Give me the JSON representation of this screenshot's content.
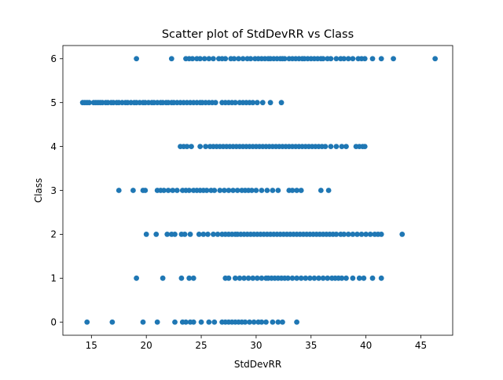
{
  "chart_data": {
    "type": "scatter",
    "title": "Scatter plot of StdDevRR vs Class",
    "xlabel": "StdDevRR",
    "ylabel": "Class",
    "xlim": [
      12.4,
      47.9
    ],
    "ylim": [
      -0.3,
      6.3
    ],
    "xticks": [
      15,
      20,
      25,
      30,
      35,
      40,
      45
    ],
    "yticks": [
      0,
      1,
      2,
      3,
      4,
      5,
      6
    ],
    "grid": false,
    "legend": "none",
    "marker_color": "#1f77b4",
    "points": [
      {
        "class": 6,
        "x": [
          19.1,
          22.3,
          23.6,
          23.9,
          24.2,
          24.6,
          24.9,
          25.3,
          25.7,
          26.1,
          26.6,
          26.9,
          27.2,
          27.7,
          28.0,
          28.4,
          28.8,
          29.2,
          29.5,
          29.9,
          30.2,
          30.5,
          30.8,
          31.1,
          31.3,
          31.6,
          31.9,
          32.2,
          32.4,
          32.6,
          33.0,
          33.3,
          33.6,
          33.9,
          34.2,
          34.4,
          34.7,
          35.0,
          35.3,
          35.6,
          35.9,
          36.1,
          36.5,
          36.8,
          37.3,
          37.7,
          38.0,
          38.4,
          38.8,
          39.3,
          39.6,
          39.9,
          40.6,
          41.4,
          42.5,
          46.3
        ]
      },
      {
        "class": 5,
        "x": [
          14.2,
          14.4,
          14.6,
          14.8,
          15.2,
          15.4,
          15.6,
          15.8,
          16.0,
          16.3,
          16.5,
          16.8,
          17.0,
          17.3,
          17.5,
          17.8,
          18.1,
          18.3,
          18.6,
          18.9,
          19.1,
          19.4,
          19.7,
          19.9,
          20.2,
          20.5,
          20.7,
          21.0,
          21.3,
          21.5,
          21.8,
          22.0,
          22.3,
          22.5,
          22.8,
          23.1,
          23.4,
          23.7,
          24.0,
          24.3,
          24.6,
          24.9,
          25.1,
          25.4,
          25.7,
          26.0,
          26.3,
          26.9,
          27.2,
          27.5,
          27.8,
          28.1,
          28.5,
          28.8,
          29.1,
          29.4,
          29.7,
          30.1,
          30.6,
          31.3,
          32.3
        ]
      },
      {
        "class": 4,
        "x": [
          23.1,
          23.4,
          23.7,
          24.1,
          24.9,
          25.4,
          25.8,
          26.1,
          26.4,
          26.7,
          27.0,
          27.3,
          27.6,
          27.9,
          28.2,
          28.5,
          28.8,
          29.1,
          29.4,
          29.7,
          30.0,
          30.3,
          30.6,
          30.9,
          31.2,
          31.5,
          31.8,
          32.1,
          32.4,
          32.7,
          33.0,
          33.3,
          33.6,
          33.9,
          34.2,
          34.5,
          34.8,
          35.1,
          35.4,
          35.7,
          36.0,
          36.3,
          36.8,
          37.3,
          37.8,
          38.2,
          39.1,
          39.4,
          39.7,
          39.9
        ]
      },
      {
        "class": 3,
        "x": [
          17.5,
          18.8,
          19.7,
          19.9,
          21.0,
          21.3,
          21.6,
          22.0,
          22.4,
          22.8,
          23.3,
          23.6,
          23.9,
          24.3,
          24.6,
          24.9,
          25.2,
          25.5,
          25.9,
          26.2,
          26.7,
          27.1,
          27.5,
          27.9,
          28.3,
          28.7,
          29.0,
          29.3,
          29.6,
          30.0,
          30.5,
          31.0,
          31.5,
          32.0,
          33.0,
          33.3,
          33.7,
          34.1,
          35.9,
          36.6
        ]
      },
      {
        "class": 2,
        "x": [
          20.0,
          20.9,
          21.9,
          22.3,
          22.6,
          23.2,
          23.5,
          24.0,
          24.8,
          25.2,
          25.6,
          26.1,
          26.5,
          26.9,
          27.2,
          27.5,
          27.8,
          28.1,
          28.3,
          28.6,
          28.9,
          29.2,
          29.5,
          29.8,
          30.1,
          30.4,
          30.7,
          31.0,
          31.3,
          31.6,
          31.9,
          32.2,
          32.5,
          32.8,
          33.1,
          33.4,
          33.7,
          34.0,
          34.3,
          34.6,
          34.9,
          35.2,
          35.5,
          35.8,
          36.1,
          36.4,
          36.7,
          37.0,
          37.3,
          37.7,
          38.0,
          38.4,
          38.8,
          39.2,
          39.6,
          40.0,
          40.4,
          40.8,
          41.1,
          41.4,
          43.3
        ]
      },
      {
        "class": 1,
        "x": [
          19.1,
          21.5,
          23.2,
          23.9,
          24.3,
          27.2,
          27.5,
          28.1,
          28.5,
          28.9,
          29.3,
          29.7,
          30.1,
          30.5,
          30.9,
          31.1,
          31.4,
          31.7,
          32.0,
          32.3,
          32.6,
          32.9,
          33.3,
          33.7,
          34.1,
          34.5,
          34.9,
          35.3,
          35.7,
          36.1,
          36.5,
          36.9,
          37.2,
          37.5,
          37.8,
          38.2,
          38.8,
          39.4,
          39.8,
          40.6,
          41.4
        ]
      },
      {
        "class": 0,
        "x": [
          14.6,
          16.9,
          19.7,
          21.0,
          22.6,
          23.3,
          23.6,
          24.0,
          24.3,
          25.0,
          25.7,
          26.2,
          26.9,
          27.2,
          27.5,
          27.8,
          28.1,
          28.4,
          28.7,
          29.0,
          29.4,
          29.8,
          30.2,
          30.5,
          30.9,
          31.5,
          32.0,
          32.4,
          33.7
        ]
      }
    ]
  }
}
